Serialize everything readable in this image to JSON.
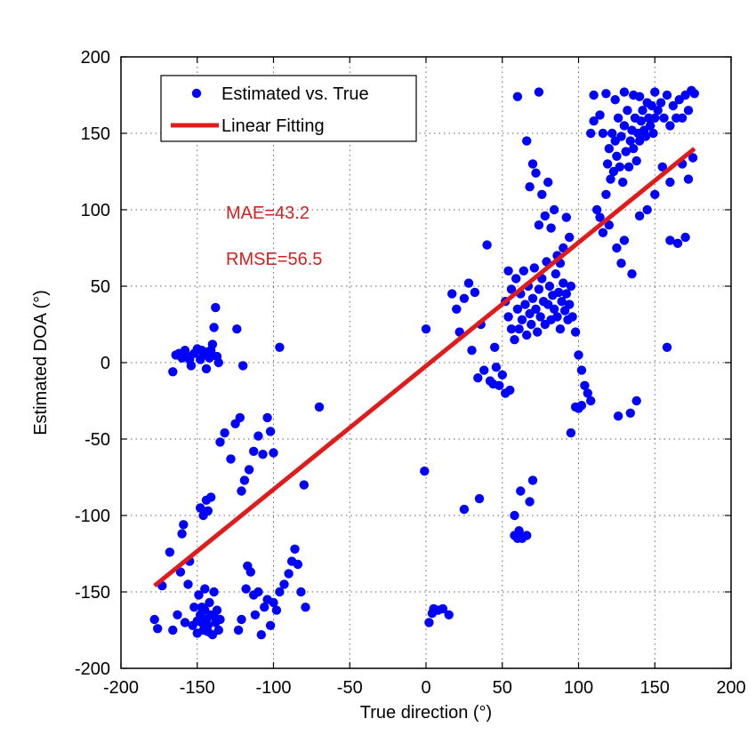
{
  "chart_data": {
    "type": "scatter",
    "xlabel": "True direction (°)",
    "ylabel": "Estimated DOA  (°)",
    "xlim": [
      -200,
      200
    ],
    "ylim": [
      -200,
      200
    ],
    "xticks": [
      -200,
      -150,
      -100,
      -50,
      0,
      50,
      100,
      150,
      200
    ],
    "yticks": [
      -200,
      -150,
      -100,
      -50,
      0,
      50,
      100,
      150,
      200
    ],
    "grid": true,
    "legend_position": "top-left",
    "colors": {
      "points": "#0000ff",
      "fit": "#e01b1b",
      "annotation": "#d42020"
    },
    "annotations": [
      "MAE=43.2",
      "RMSE=56.5"
    ],
    "series": [
      {
        "name": "Estimated vs. True",
        "kind": "scatter",
        "points": [
          [
            -178,
            -168
          ],
          [
            -176,
            -174
          ],
          [
            -173,
            -146
          ],
          [
            -168,
            -124
          ],
          [
            -166,
            -175
          ],
          [
            -163,
            -165
          ],
          [
            -161,
            -137
          ],
          [
            -160,
            -112
          ],
          [
            -159,
            -106
          ],
          [
            -158,
            -170
          ],
          [
            -156,
            -145
          ],
          [
            -155,
            -130
          ],
          [
            -153,
            -172
          ],
          [
            -152,
            -160
          ],
          [
            -150,
            -177
          ],
          [
            -149,
            -152
          ],
          [
            -148,
            -165
          ],
          [
            -147,
            -170
          ],
          [
            -146,
            -175
          ],
          [
            -145,
            -162
          ],
          [
            -144,
            -168
          ],
          [
            -143,
            -172
          ],
          [
            -142,
            -157
          ],
          [
            -141,
            -165
          ],
          [
            -140,
            -178
          ],
          [
            -139,
            -150
          ],
          [
            -138,
            -170
          ],
          [
            -137,
            -162
          ],
          [
            -136,
            -175
          ],
          [
            -135,
            -168
          ],
          [
            -147,
            -160
          ],
          [
            -143,
            -176
          ],
          [
            -139,
            -166
          ],
          [
            -145,
            -148
          ],
          [
            -150,
            -169
          ],
          [
            -166,
            -6
          ],
          [
            -164,
            5
          ],
          [
            -162,
            6
          ],
          [
            -160,
            3
          ],
          [
            -158,
            8
          ],
          [
            -156,
            4
          ],
          [
            -154,
            -2
          ],
          [
            -152,
            6
          ],
          [
            -150,
            9
          ],
          [
            -148,
            2
          ],
          [
            -146,
            5
          ],
          [
            -144,
            -4
          ],
          [
            -143,
            7
          ],
          [
            -142,
            3
          ],
          [
            -141,
            8
          ],
          [
            -140,
            12
          ],
          [
            -139,
            23
          ],
          [
            -138,
            36
          ],
          [
            -137,
            4
          ],
          [
            -136,
            0
          ],
          [
            -155,
            2
          ],
          [
            -147,
            8
          ],
          [
            -148,
            -95
          ],
          [
            -146,
            -100
          ],
          [
            -144,
            -90
          ],
          [
            -143,
            -97
          ],
          [
            -141,
            -88
          ],
          [
            -135,
            -52
          ],
          [
            -132,
            -46
          ],
          [
            -128,
            -63
          ],
          [
            -125,
            -40
          ],
          [
            -122,
            -36
          ],
          [
            -121,
            -84
          ],
          [
            -119,
            -77
          ],
          [
            -116,
            -70
          ],
          [
            -113,
            -58
          ],
          [
            -110,
            -48
          ],
          [
            -107,
            -60
          ],
          [
            -104,
            -36
          ],
          [
            -102,
            -45
          ],
          [
            -100,
            -59
          ],
          [
            -96,
            10
          ],
          [
            -80,
            -80
          ],
          [
            -70,
            -29
          ],
          [
            -124,
            22
          ],
          [
            -120,
            -2
          ],
          [
            -117,
            -133
          ],
          [
            -115,
            -137
          ],
          [
            -113,
            -152
          ],
          [
            -112,
            -165
          ],
          [
            -110,
            -150
          ],
          [
            -108,
            -178
          ],
          [
            -106,
            -160
          ],
          [
            -104,
            -155
          ],
          [
            -102,
            -172
          ],
          [
            -100,
            -157
          ],
          [
            -98,
            -162
          ],
          [
            -96,
            -150
          ],
          [
            -93,
            -145
          ],
          [
            -90,
            -138
          ],
          [
            -88,
            -130
          ],
          [
            -86,
            -122
          ],
          [
            -84,
            -132
          ],
          [
            -82,
            -150
          ],
          [
            -79,
            -160
          ],
          [
            -123,
            -175
          ],
          [
            -121,
            -168
          ],
          [
            -118,
            -148
          ],
          [
            -1,
            -71
          ],
          [
            0,
            22
          ],
          [
            2,
            -170
          ],
          [
            4,
            -164
          ],
          [
            5,
            -161
          ],
          [
            8,
            -162
          ],
          [
            11,
            -161
          ],
          [
            15,
            -165
          ],
          [
            17,
            45
          ],
          [
            20,
            35
          ],
          [
            22,
            20
          ],
          [
            25,
            -96
          ],
          [
            25,
            42
          ],
          [
            28,
            52
          ],
          [
            30,
            8
          ],
          [
            32,
            46
          ],
          [
            34,
            -10
          ],
          [
            35,
            -89
          ],
          [
            36,
            25
          ],
          [
            38,
            -5
          ],
          [
            40,
            77
          ],
          [
            42,
            -12
          ],
          [
            44,
            -14
          ],
          [
            45,
            10
          ],
          [
            46,
            -3
          ],
          [
            48,
            -15
          ],
          [
            50,
            -8
          ],
          [
            52,
            -20
          ],
          [
            54,
            60
          ],
          [
            55,
            -18
          ],
          [
            56,
            22
          ],
          [
            58,
            -113
          ],
          [
            58,
            -100
          ],
          [
            60,
            -115
          ],
          [
            61,
            -110
          ],
          [
            62,
            -84
          ],
          [
            63,
            -115
          ],
          [
            66,
            -113
          ],
          [
            68,
            -91
          ],
          [
            70,
            -77
          ],
          [
            60,
            174
          ],
          [
            74,
            177
          ],
          [
            52,
            40
          ],
          [
            54,
            30
          ],
          [
            56,
            48
          ],
          [
            58,
            15
          ],
          [
            59,
            55
          ],
          [
            60,
            35
          ],
          [
            61,
            22
          ],
          [
            62,
            45
          ],
          [
            63,
            28
          ],
          [
            64,
            60
          ],
          [
            65,
            38
          ],
          [
            66,
            18
          ],
          [
            67,
            50
          ],
          [
            68,
            32
          ],
          [
            69,
            25
          ],
          [
            70,
            42
          ],
          [
            71,
            62
          ],
          [
            72,
            35
          ],
          [
            73,
            20
          ],
          [
            74,
            48
          ],
          [
            75,
            30
          ],
          [
            76,
            55
          ],
          [
            77,
            40
          ],
          [
            78,
            25
          ],
          [
            79,
            66
          ],
          [
            80,
            38
          ],
          [
            81,
            50
          ],
          [
            82,
            28
          ],
          [
            83,
            44
          ],
          [
            84,
            35
          ],
          [
            85,
            58
          ],
          [
            86,
            30
          ],
          [
            87,
            46
          ],
          [
            88,
            22
          ],
          [
            89,
            40
          ],
          [
            90,
            52
          ],
          [
            91,
            34
          ],
          [
            92,
            45
          ],
          [
            93,
            28
          ],
          [
            94,
            38
          ],
          [
            95,
            50
          ],
          [
            96,
            30
          ],
          [
            98,
            20
          ],
          [
            100,
            5
          ],
          [
            102,
            -5
          ],
          [
            104,
            -15
          ],
          [
            106,
            -20
          ],
          [
            108,
            -25
          ],
          [
            66,
            145
          ],
          [
            68,
            115
          ],
          [
            70,
            130
          ],
          [
            72,
            124
          ],
          [
            74,
            90
          ],
          [
            76,
            110
          ],
          [
            78,
            96
          ],
          [
            80,
            118
          ],
          [
            82,
            88
          ],
          [
            84,
            100
          ],
          [
            86,
            70
          ],
          [
            88,
            65
          ],
          [
            90,
            75
          ],
          [
            92,
            95
          ],
          [
            94,
            82
          ],
          [
            98,
            -29
          ],
          [
            95,
            -46
          ],
          [
            100,
            -30
          ],
          [
            102,
            -28
          ],
          [
            126,
            -35
          ],
          [
            134,
            -33
          ],
          [
            138,
            -25
          ],
          [
            112,
            100
          ],
          [
            114,
            95
          ],
          [
            116,
            85
          ],
          [
            118,
            110
          ],
          [
            119,
            130
          ],
          [
            120,
            140
          ],
          [
            121,
            120
          ],
          [
            122,
            150
          ],
          [
            123,
            125
          ],
          [
            124,
            145
          ],
          [
            125,
            135
          ],
          [
            126,
            160
          ],
          [
            127,
            128
          ],
          [
            128,
            148
          ],
          [
            129,
            118
          ],
          [
            130,
            155
          ],
          [
            131,
            138
          ],
          [
            132,
            165
          ],
          [
            133,
            128
          ],
          [
            134,
            145
          ],
          [
            135,
            152
          ],
          [
            136,
            140
          ],
          [
            137,
            160
          ],
          [
            138,
            132
          ],
          [
            139,
            150
          ],
          [
            140,
            145
          ],
          [
            141,
            158
          ],
          [
            142,
            165
          ],
          [
            143,
            152
          ],
          [
            144,
            148
          ],
          [
            145,
            170
          ],
          [
            146,
            160
          ],
          [
            147,
            155
          ],
          [
            148,
            168
          ],
          [
            149,
            150
          ],
          [
            150,
            160
          ],
          [
            152,
            165
          ],
          [
            154,
            170
          ],
          [
            156,
            160
          ],
          [
            158,
            175
          ],
          [
            160,
            155
          ],
          [
            162,
            168
          ],
          [
            164,
            160
          ],
          [
            166,
            172
          ],
          [
            168,
            160
          ],
          [
            170,
            175
          ],
          [
            172,
            165
          ],
          [
            174,
            178
          ],
          [
            176,
            176
          ],
          [
            110,
            175
          ],
          [
            118,
            176
          ],
          [
            124,
            172
          ],
          [
            130,
            177
          ],
          [
            136,
            175
          ],
          [
            140,
            174
          ],
          [
            150,
            177
          ],
          [
            114,
            162
          ],
          [
            110,
            158
          ],
          [
            108,
            150
          ],
          [
            116,
            150
          ],
          [
            120,
            90
          ],
          [
            125,
            75
          ],
          [
            128,
            65
          ],
          [
            130,
            80
          ],
          [
            135,
            58
          ],
          [
            140,
            96
          ],
          [
            145,
            100
          ],
          [
            150,
            110
          ],
          [
            155,
            128
          ],
          [
            158,
            10
          ],
          [
            160,
            80
          ],
          [
            165,
            78
          ],
          [
            170,
            82
          ],
          [
            172,
            120
          ],
          [
            175,
            134
          ],
          [
            160,
            118
          ],
          [
            168,
            130
          ]
        ]
      },
      {
        "name": "Linear Fitting",
        "kind": "line",
        "points": [
          [
            -178,
            -146
          ],
          [
            176,
            140
          ]
        ]
      }
    ]
  }
}
